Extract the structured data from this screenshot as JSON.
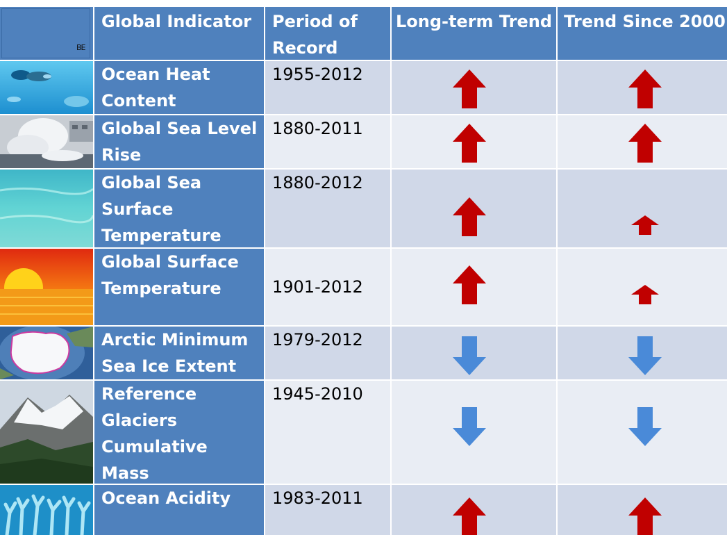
{
  "header": {
    "corner_label": "BE",
    "col_indicator": "Global Indicator",
    "col_period": "Period of Record",
    "col_long": "Long-term Trend",
    "col_since": "Trend Since 2000"
  },
  "rows": [
    {
      "indicator": "Ocean Heat Content",
      "period": "1955-2012",
      "long_trend": "up",
      "since_2000": "up",
      "image": "fish-underwater-image"
    },
    {
      "indicator": "Global Sea Level Rise",
      "period": "1880-2011",
      "long_trend": "up",
      "since_2000": "up",
      "image": "waves-crashing-image"
    },
    {
      "indicator": "Global  Sea Surface Temperature",
      "period": "1880-2012",
      "long_trend": "up",
      "since_2000": "small-up",
      "image": "tropical-water-image"
    },
    {
      "indicator": "Global Surface Temperature",
      "period": "1901-2012",
      "long_trend": "up",
      "since_2000": "small-up",
      "image": "sunset-image"
    },
    {
      "indicator": "Arctic Minimum Sea Ice Extent",
      "period": "1979-2012",
      "long_trend": "down",
      "since_2000": "down",
      "image": "arctic-map-image"
    },
    {
      "indicator": "Reference Glaciers Cumulative Mass",
      "period": "1945-2010",
      "long_trend": "down",
      "since_2000": "down",
      "image": "glacier-mountain-image"
    },
    {
      "indicator": "Ocean Acidity",
      "period": "1983-2011",
      "long_trend": "up",
      "since_2000": "up",
      "image": "coral-reef-image"
    }
  ],
  "colors": {
    "header_blue": "#4f81bd",
    "row_light": "#e9edf4",
    "row_dark": "#d0d8e8",
    "arrow_up_red": "#c00000",
    "arrow_down_blue": "#4a8ad8"
  }
}
